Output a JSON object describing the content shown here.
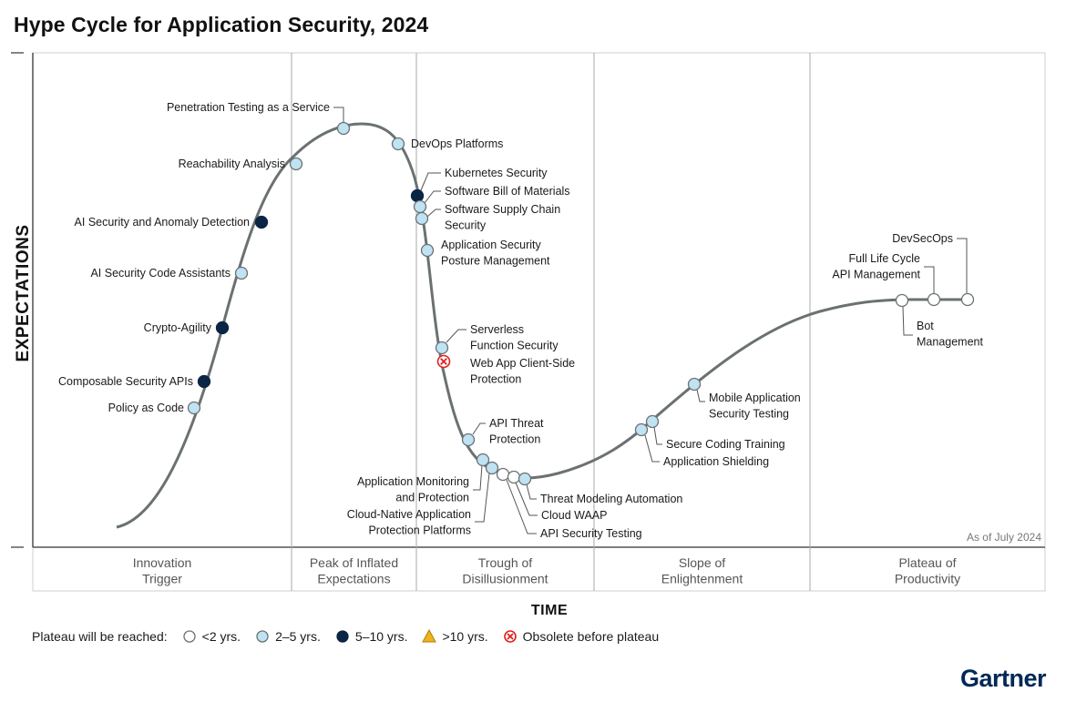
{
  "chart_data": {
    "type": "hype_cycle",
    "title": "Hype Cycle for Application Security, 2024",
    "ylabel": "EXPECTATIONS",
    "xlabel": "TIME",
    "as_of": "As of July 2024",
    "phases": [
      {
        "name": "Innovation Trigger",
        "lines": [
          "Innovation",
          "Trigger"
        ]
      },
      {
        "name": "Peak of Inflated Expectations",
        "lines": [
          "Peak of Inflated",
          "Expectations"
        ]
      },
      {
        "name": "Trough of Disillusionment",
        "lines": [
          "Trough of",
          "Disillusionment"
        ]
      },
      {
        "name": "Slope of Enlightenment",
        "lines": [
          "Slope of",
          "Enlightenment"
        ]
      },
      {
        "name": "Plateau of Productivity",
        "lines": [
          "Plateau of",
          "Productivity"
        ]
      }
    ],
    "legend": {
      "label": "Plateau will be reached:",
      "items": [
        {
          "key": "lt2",
          "label": "<2 yrs."
        },
        {
          "key": "2to5",
          "label": "2–5 yrs."
        },
        {
          "key": "5to10",
          "label": "5–10 yrs."
        },
        {
          "key": "gt10",
          "label": ">10 yrs."
        },
        {
          "key": "obsolete",
          "label": "Obsolete before plateau"
        }
      ]
    },
    "technologies": [
      {
        "name": "Policy as Code",
        "lines": [
          "Policy as Code"
        ],
        "phase": "Innovation Trigger",
        "plateau": "2to5"
      },
      {
        "name": "Composable Security APIs",
        "lines": [
          "Composable Security APIs"
        ],
        "phase": "Innovation Trigger",
        "plateau": "5to10"
      },
      {
        "name": "Crypto-Agility",
        "lines": [
          "Crypto-Agility"
        ],
        "phase": "Innovation Trigger",
        "plateau": "5to10"
      },
      {
        "name": "AI Security Code Assistants",
        "lines": [
          "AI Security Code Assistants"
        ],
        "phase": "Innovation Trigger",
        "plateau": "2to5"
      },
      {
        "name": "AI Security and Anomaly Detection",
        "lines": [
          "AI Security and Anomaly Detection"
        ],
        "phase": "Innovation Trigger",
        "plateau": "5to10"
      },
      {
        "name": "Reachability Analysis",
        "lines": [
          "Reachability Analysis"
        ],
        "phase": "Peak of Inflated Expectations",
        "plateau": "2to5"
      },
      {
        "name": "Penetration Testing as a Service",
        "lines": [
          "Penetration Testing as a Service"
        ],
        "phase": "Peak of Inflated Expectations",
        "plateau": "2to5"
      },
      {
        "name": "DevOps Platforms",
        "lines": [
          "DevOps Platforms"
        ],
        "phase": "Peak of Inflated Expectations",
        "plateau": "2to5"
      },
      {
        "name": "Kubernetes Security",
        "lines": [
          "Kubernetes Security"
        ],
        "phase": "Peak of Inflated Expectations",
        "plateau": "5to10"
      },
      {
        "name": "Software Bill of Materials",
        "lines": [
          "Software Bill of Materials"
        ],
        "phase": "Trough of Disillusionment",
        "plateau": "2to5"
      },
      {
        "name": "Software Supply Chain Security",
        "lines": [
          "Software Supply Chain",
          "Security"
        ],
        "phase": "Trough of Disillusionment",
        "plateau": "2to5"
      },
      {
        "name": "Application Security Posture Management",
        "lines": [
          "Application Security",
          "Posture Management"
        ],
        "phase": "Trough of Disillusionment",
        "plateau": "2to5"
      },
      {
        "name": "Serverless Function Security",
        "lines": [
          "Serverless",
          "Function Security"
        ],
        "phase": "Trough of Disillusionment",
        "plateau": "2to5"
      },
      {
        "name": "Web App Client-Side Protection",
        "lines": [
          "Web App Client-Side",
          "Protection"
        ],
        "phase": "Trough of Disillusionment",
        "plateau": "obsolete"
      },
      {
        "name": "API Threat Protection",
        "lines": [
          "API Threat",
          "Protection"
        ],
        "phase": "Trough of Disillusionment",
        "plateau": "2to5"
      },
      {
        "name": "Application Monitoring and Protection",
        "lines": [
          "Application Monitoring",
          "and Protection"
        ],
        "phase": "Trough of Disillusionment",
        "plateau": "2to5"
      },
      {
        "name": "Cloud-Native Application Protection Platforms",
        "lines": [
          "Cloud-Native Application",
          "Protection Platforms"
        ],
        "phase": "Trough of Disillusionment",
        "plateau": "2to5"
      },
      {
        "name": "API Security Testing",
        "lines": [
          "API Security Testing"
        ],
        "phase": "Trough of Disillusionment",
        "plateau": "lt2"
      },
      {
        "name": "Cloud WAAP",
        "lines": [
          "Cloud WAAP"
        ],
        "phase": "Trough of Disillusionment",
        "plateau": "lt2"
      },
      {
        "name": "Threat Modeling Automation",
        "lines": [
          "Threat Modeling Automation"
        ],
        "phase": "Trough of Disillusionment",
        "plateau": "2to5"
      },
      {
        "name": "Application Shielding",
        "lines": [
          "Application Shielding"
        ],
        "phase": "Slope of Enlightenment",
        "plateau": "2to5"
      },
      {
        "name": "Secure Coding Training",
        "lines": [
          "Secure Coding Training"
        ],
        "phase": "Slope of Enlightenment",
        "plateau": "2to5"
      },
      {
        "name": "Mobile Application Security Testing",
        "lines": [
          "Mobile Application",
          "Security Testing"
        ],
        "phase": "Slope of Enlightenment",
        "plateau": "2to5"
      },
      {
        "name": "Bot Management",
        "lines": [
          "Bot",
          "Management"
        ],
        "phase": "Plateau of Productivity",
        "plateau": "lt2"
      },
      {
        "name": "Full Life Cycle API Management",
        "lines": [
          "Full Life Cycle",
          "API Management"
        ],
        "phase": "Plateau of Productivity",
        "plateau": "lt2"
      },
      {
        "name": "DevSecOps",
        "lines": [
          "DevSecOps"
        ],
        "phase": "Plateau of Productivity",
        "plateau": "lt2"
      }
    ]
  },
  "colors": {
    "curve": "#6b7172",
    "lt2": "#ffffff",
    "2to5": "#bfe3f3",
    "5to10": "#0b2545",
    "gt10": "#f2b11b",
    "obsolete": "#e02020",
    "marker_stroke": "#6b7172",
    "brand": "#002856"
  },
  "brand": "Gartner"
}
